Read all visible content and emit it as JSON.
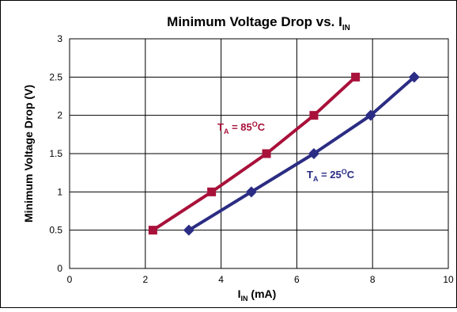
{
  "chart_data": {
    "type": "line",
    "title": {
      "main": "Minimum Voltage Drop vs. I",
      "sub": "IN"
    },
    "xlabel": {
      "main": "I",
      "sub": "IN",
      "unit": " (mA)"
    },
    "ylabel": "Minimum Voltage Drop (V)",
    "xlim": [
      0,
      10
    ],
    "ylim": [
      0,
      3
    ],
    "x_ticks": [
      "0",
      "2",
      "4",
      "6",
      "8",
      "10"
    ],
    "y_ticks": [
      "0",
      "0.5",
      "1",
      "1.5",
      "2",
      "2.5",
      "3"
    ],
    "grid": true,
    "series": [
      {
        "name": "TA = 85°C",
        "color": "#a8113a",
        "marker": "square",
        "x": [
          2.2,
          3.75,
          5.2,
          6.45,
          7.55
        ],
        "y": [
          0.5,
          1.0,
          1.5,
          2.0,
          2.5
        ],
        "label": {
          "t": "T",
          "sub": "A",
          "eq": " = 85",
          "sup": "O",
          "unit": "C"
        }
      },
      {
        "name": "TA = 25°C",
        "color": "#2b2c83",
        "marker": "diamond",
        "x": [
          3.15,
          4.8,
          6.45,
          7.95,
          9.1
        ],
        "y": [
          0.5,
          1.0,
          1.5,
          2.0,
          2.5
        ],
        "label": {
          "t": "T",
          "sub": "A",
          "eq": " = 25",
          "sup": "O",
          "unit": "C"
        }
      }
    ]
  }
}
